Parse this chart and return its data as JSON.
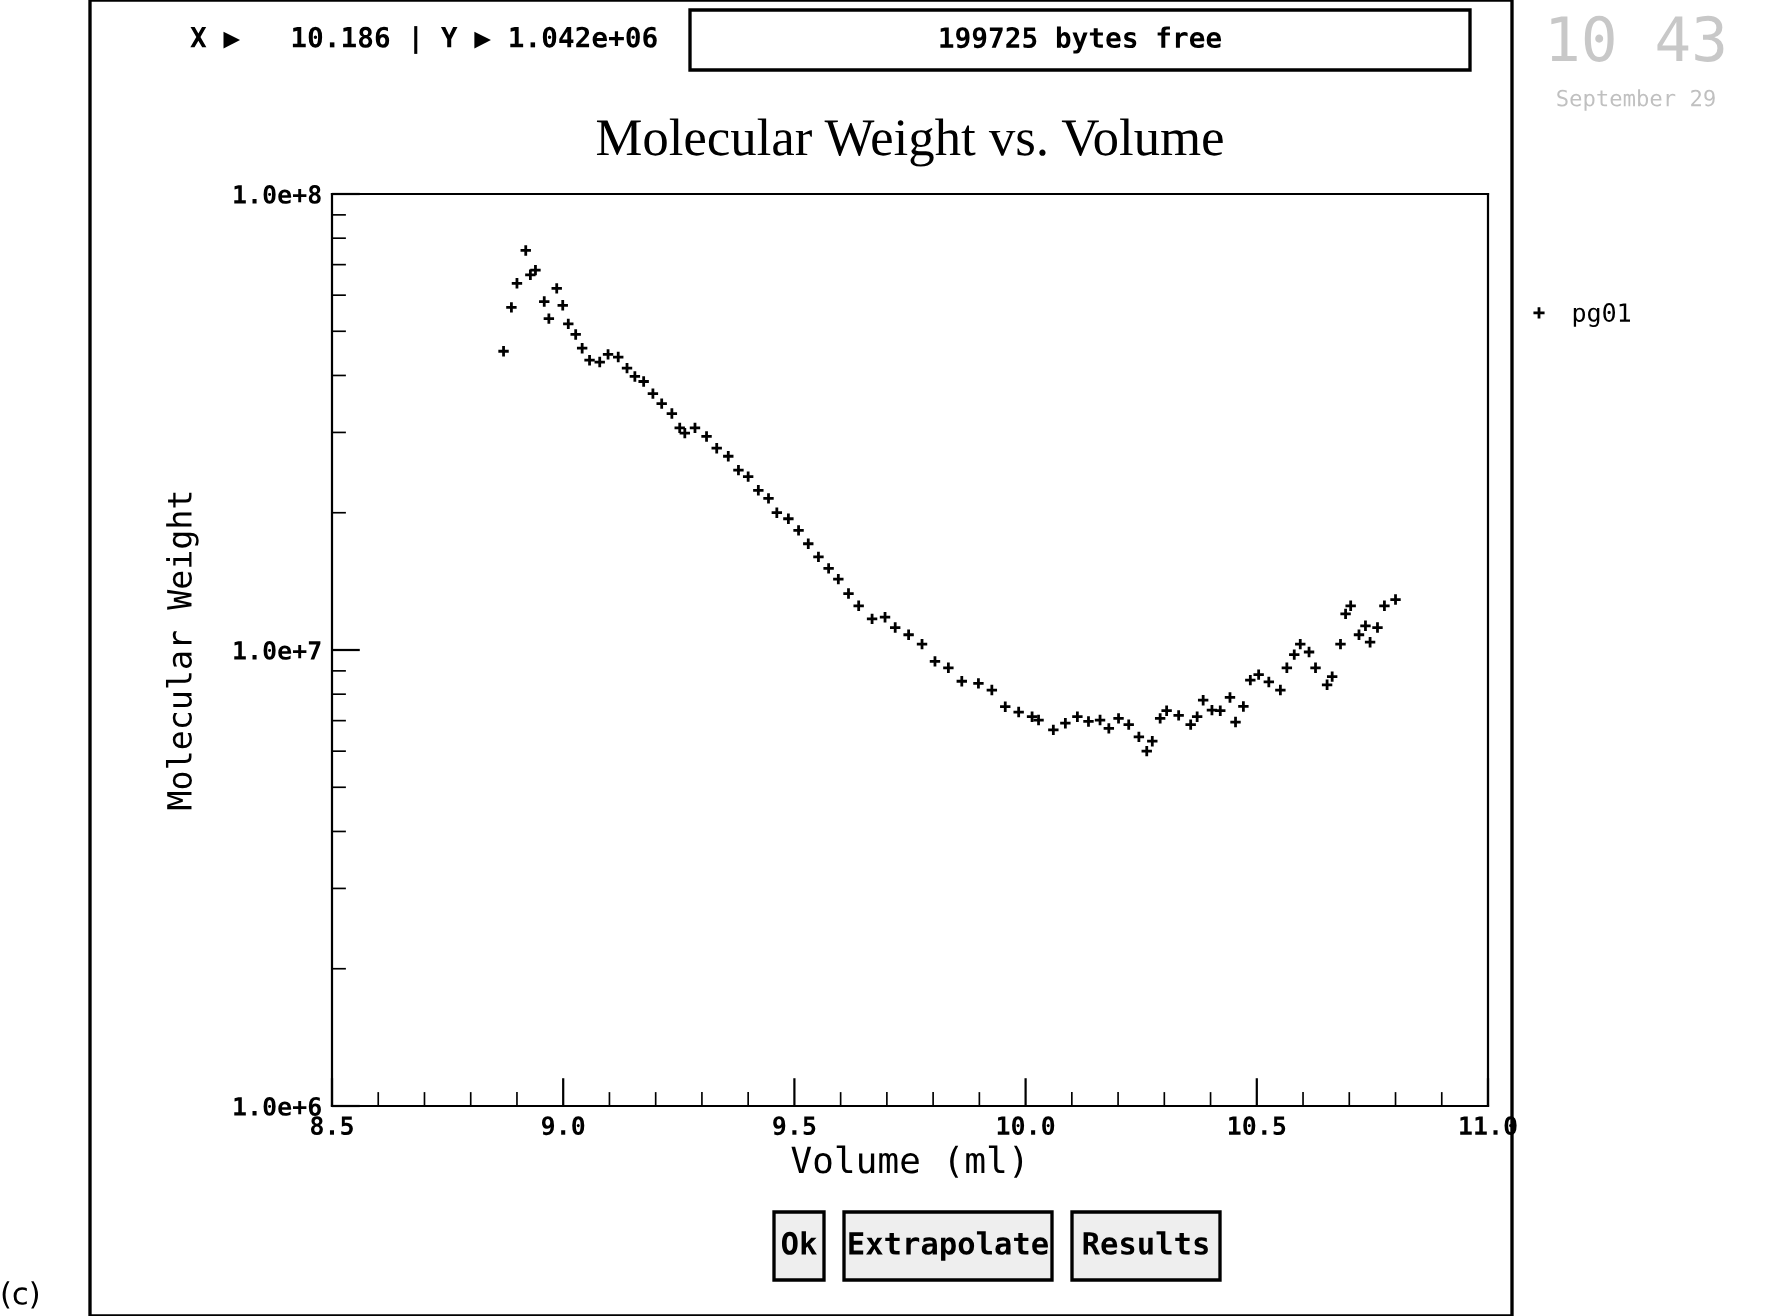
{
  "chart_data": {
    "type": "scatter",
    "title": "Molecular Weight vs. Volume",
    "xlabel": "Volume (ml)",
    "ylabel": "Molecular Weight",
    "log": "y",
    "xlim": [
      8.5,
      11.0
    ],
    "ylim": [
      1000000.0,
      100000000.0
    ],
    "xticks": [
      {
        "value": 8.5,
        "label": "8.5"
      },
      {
        "value": 8.6,
        "label": null
      },
      {
        "value": 8.7,
        "label": null
      },
      {
        "value": 8.8,
        "label": null
      },
      {
        "value": 8.9,
        "label": null
      },
      {
        "value": 9.0,
        "label": "9.0"
      },
      {
        "value": 9.1,
        "label": null
      },
      {
        "value": 9.2,
        "label": null
      },
      {
        "value": 9.3,
        "label": null
      },
      {
        "value": 9.4,
        "label": null
      },
      {
        "value": 9.5,
        "label": "9.5"
      },
      {
        "value": 9.6,
        "label": null
      },
      {
        "value": 9.7,
        "label": null
      },
      {
        "value": 9.8,
        "label": null
      },
      {
        "value": 9.9,
        "label": null
      },
      {
        "value": 10.0,
        "label": "10.0"
      },
      {
        "value": 10.1,
        "label": null
      },
      {
        "value": 10.2,
        "label": null
      },
      {
        "value": 10.3,
        "label": null
      },
      {
        "value": 10.4,
        "label": null
      },
      {
        "value": 10.5,
        "label": "10.5"
      },
      {
        "value": 10.6,
        "label": null
      },
      {
        "value": 10.7,
        "label": null
      },
      {
        "value": 10.8,
        "label": null
      },
      {
        "value": 10.9,
        "label": null
      },
      {
        "value": 11.0,
        "label": "11.0"
      }
    ],
    "yticks": [
      {
        "value": 1000000.0,
        "label": "1.0e+6"
      },
      {
        "value": 2000000.0,
        "label": null
      },
      {
        "value": 3000000.0,
        "label": null
      },
      {
        "value": 4000000.0,
        "label": null
      },
      {
        "value": 5000000.0,
        "label": null
      },
      {
        "value": 6000000.0,
        "label": null
      },
      {
        "value": 7000000.0,
        "label": null
      },
      {
        "value": 8000000.0,
        "label": null
      },
      {
        "value": 9000000.0,
        "label": null
      },
      {
        "value": 10000000.0,
        "label": "1.0e+7"
      },
      {
        "value": 20000000.0,
        "label": null
      },
      {
        "value": 30000000.0,
        "label": null
      },
      {
        "value": 40000000.0,
        "label": null
      },
      {
        "value": 50000000.0,
        "label": null
      },
      {
        "value": 60000000.0,
        "label": null
      },
      {
        "value": 70000000.0,
        "label": null
      },
      {
        "value": 80000000.0,
        "label": null
      },
      {
        "value": 90000000.0,
        "label": null
      },
      {
        "value": 100000000.0,
        "label": "1.0e+8"
      }
    ],
    "grid": false,
    "legend": "top right",
    "marker": "cross",
    "series": [
      {
        "name": "pg01",
        "color": "#000000",
        "x": [
          8.871,
          8.888,
          8.9,
          8.919,
          8.929,
          8.94,
          8.959,
          8.969,
          8.986,
          8.999,
          9.011,
          9.027,
          9.041,
          9.057,
          9.079,
          9.097,
          9.119,
          9.138,
          9.155,
          9.174,
          9.194,
          9.213,
          9.235,
          9.252,
          9.263,
          9.285,
          9.31,
          9.332,
          9.357,
          9.379,
          9.4,
          9.422,
          9.444,
          9.462,
          9.487,
          9.509,
          9.53,
          9.552,
          9.574,
          9.595,
          9.617,
          9.639,
          9.668,
          9.696,
          9.718,
          9.747,
          9.776,
          9.804,
          9.833,
          9.862,
          9.898,
          9.927,
          9.956,
          9.985,
          10.014,
          10.028,
          10.06,
          10.086,
          10.112,
          10.136,
          10.161,
          10.18,
          10.201,
          10.223,
          10.245,
          10.262,
          10.274,
          10.291,
          10.305,
          10.331,
          10.357,
          10.371,
          10.384,
          10.403,
          10.421,
          10.442,
          10.454,
          10.471,
          10.486,
          10.504,
          10.526,
          10.551,
          10.565,
          10.581,
          10.594,
          10.613,
          10.627,
          10.652,
          10.663,
          10.681,
          10.692,
          10.703,
          10.721,
          10.735,
          10.745,
          10.761,
          10.776,
          10.8
        ],
        "values": [
          45200000.0,
          56400000.0,
          63700000.0,
          75200000.0,
          66500000.0,
          68100000.0,
          58100000.0,
          53300000.0,
          62100000.0,
          57000000.0,
          51900000.0,
          49200000.0,
          45900000.0,
          43200000.0,
          42800000.0,
          44500000.0,
          43900000.0,
          41500000.0,
          39800000.0,
          38800000.0,
          36500000.0,
          34700000.0,
          33000000.0,
          30700000.0,
          29900000.0,
          30700000.0,
          29400000.0,
          27700000.0,
          26600000.0,
          24800000.0,
          24000000.0,
          22400000.0,
          21500000.0,
          20000000.0,
          19400000.0,
          18300000.0,
          17100000.0,
          16000000.0,
          15100000.0,
          14300000.0,
          13300000.0,
          12500000.0,
          11700000.0,
          11800000.0,
          11200000.0,
          10800000.0,
          10300000.0,
          9440000.0,
          9140000.0,
          8540000.0,
          8450000.0,
          8170000.0,
          7510000.0,
          7310000.0,
          7140000.0,
          7020000.0,
          6680000.0,
          6910000.0,
          7140000.0,
          6970000.0,
          7020000.0,
          6730000.0,
          7080000.0,
          6860000.0,
          6450000.0,
          6000000.0,
          6310000.0,
          7080000.0,
          7360000.0,
          7190000.0,
          6860000.0,
          7140000.0,
          7760000.0,
          7380000.0,
          7360000.0,
          7870000.0,
          6950000.0,
          7520000.0,
          8590000.0,
          8830000.0,
          8510000.0,
          8170000.0,
          9140000.0,
          9770000.0,
          10300000.0,
          9900000.0,
          9140000.0,
          8390000.0,
          8740000.0,
          10300000.0,
          12000000.0,
          12500000.0,
          10800000.0,
          11300000.0,
          10400000.0,
          11200000.0,
          12500000.0,
          12900000.0
        ]
      }
    ],
    "annotations": [
      "X ▶   10.186 | Y ▶ 1.042e+06",
      "199725 bytes free",
      "10 43",
      "September 29",
      "Ok",
      "Extrapolate",
      "Results",
      "(c)"
    ]
  }
}
